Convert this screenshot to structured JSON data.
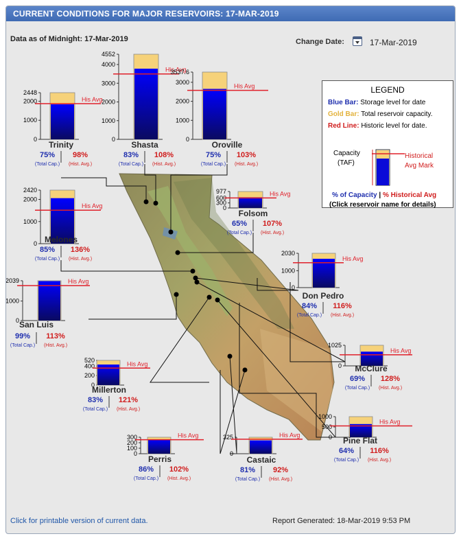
{
  "header": {
    "title": "CURRENT CONDITIONS FOR MAJOR RESERVOIRS: 17-MAR-2019",
    "data_as_of": "Data as of Midnight: 17-Mar-2019",
    "change_date_label": "Change Date:",
    "change_date_value": "17-Mar-2019"
  },
  "legend": {
    "title": "LEGEND",
    "blue_key": "Blue Bar:",
    "blue_desc": "Storage level for date",
    "gold_key": "Gold Bar:",
    "gold_desc": "Total reservoir capacity.",
    "red_key": "Red Line:",
    "red_desc": "Historic level for date.",
    "capacity_label": "Capacity",
    "capacity_unit": "(TAF)",
    "historical_label_1": "Historical",
    "historical_label_2": "Avg Mark",
    "pct_capacity": "% of Capacity",
    "separator": "|",
    "pct_historical": "% Historical Avg",
    "click_note": "(Click reservoir name for details)"
  },
  "labels": {
    "his_avg": "His Avg",
    "total_cap": "(Total Cap.)",
    "hist_avg": "(Hist. Avg.)"
  },
  "colors": {
    "storage": "#0a0ad8",
    "capacity": "#f6d27a",
    "historic_line": "#e0202a",
    "pct_capacity_text": "#1f2fae",
    "pct_hist_text": "#d01c1c",
    "title_bar": "#4a74be"
  },
  "footer": {
    "printable_link": "Click for printable version of current data.",
    "report_generated": "Report Generated: 18-Mar-2019 9:53 PM"
  },
  "chart_data": {
    "type": "bar",
    "units": "TAF",
    "reservoirs": [
      {
        "name": "Trinity",
        "capacity": 2448,
        "storage": 1836,
        "hist_avg": 1873,
        "pct_capacity": "75%",
        "pct_hist": "98%",
        "ticks": [
          "2448",
          "2000",
          "1000",
          "0"
        ]
      },
      {
        "name": "Shasta",
        "capacity": 4552,
        "storage": 3778,
        "hist_avg": 3498,
        "pct_capacity": "83%",
        "pct_hist": "108%",
        "ticks": [
          "4552",
          "4000",
          "3000",
          "2000",
          "1000",
          "0"
        ]
      },
      {
        "name": "Oroville",
        "capacity": 3537.6,
        "storage": 2653,
        "hist_avg": 2576,
        "pct_capacity": "75%",
        "pct_hist": "103%",
        "ticks": [
          "3537.6",
          "3000",
          "2000",
          "1000",
          "0"
        ]
      },
      {
        "name": "Folsom",
        "capacity": 977,
        "storage": 635,
        "hist_avg": 594,
        "pct_capacity": "65%",
        "pct_hist": "107%",
        "ticks": [
          "977",
          "600",
          "300",
          "0"
        ]
      },
      {
        "name": "Melones",
        "capacity": 2420,
        "storage": 2057,
        "hist_avg": 1513,
        "pct_capacity": "85%",
        "pct_hist": "136%",
        "ticks": [
          "2420",
          "2000",
          "1000",
          "0"
        ]
      },
      {
        "name": "San Luis",
        "capacity": 2039,
        "storage": 2019,
        "hist_avg": 1787,
        "pct_capacity": "99%",
        "pct_hist": "113%",
        "ticks": [
          "2039",
          "1000",
          "0"
        ]
      },
      {
        "name": "Don Pedro",
        "capacity": 2030,
        "storage": 1705,
        "hist_avg": 1470,
        "pct_capacity": "84%",
        "pct_hist": "116%",
        "ticks": [
          "2030",
          "1000",
          "0"
        ]
      },
      {
        "name": "McClure",
        "capacity": 1025,
        "storage": 707,
        "hist_avg": 552,
        "pct_capacity": "69%",
        "pct_hist": "128%",
        "ticks": [
          "1025",
          "0"
        ]
      },
      {
        "name": "Millerton",
        "capacity": 520,
        "storage": 432,
        "hist_avg": 357,
        "pct_capacity": "83%",
        "pct_hist": "121%",
        "ticks": [
          "520",
          "400",
          "200",
          "0"
        ]
      },
      {
        "name": "Pine Flat",
        "capacity": 1000,
        "storage": 640,
        "hist_avg": 552,
        "pct_capacity": "64%",
        "pct_hist": "116%",
        "ticks": [
          "1000",
          "500",
          "0"
        ]
      },
      {
        "name": "Perris",
        "capacity": 131,
        "storage": 113,
        "hist_avg": 111,
        "pct_capacity": "86%",
        "pct_hist": "102%",
        "ticks": [
          "300",
          "200",
          "100",
          "0"
        ]
      },
      {
        "name": "Castaic",
        "capacity": 325,
        "storage": 263,
        "hist_avg": 286,
        "pct_capacity": "81%",
        "pct_hist": "92%",
        "ticks": [
          "325",
          "0"
        ]
      }
    ]
  }
}
